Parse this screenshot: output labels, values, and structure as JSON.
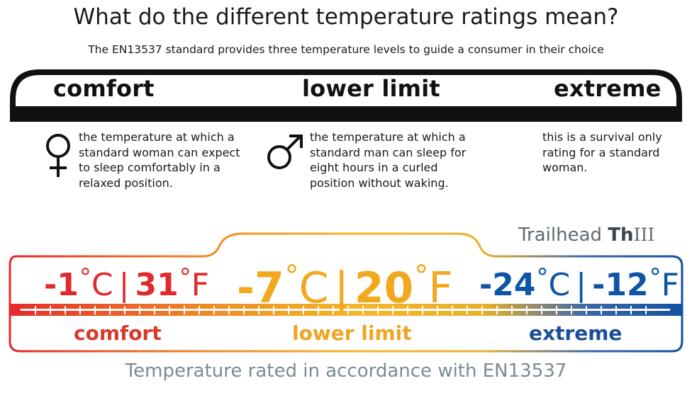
{
  "header": {
    "title": "What do the different temperature ratings mean?",
    "subtitle": "The EN13537 standard provides three temperature levels to guide a consumer in their choice"
  },
  "levels": [
    {
      "label": "comfort",
      "icon": "female-symbol-icon",
      "description": [
        "the temperature at which a",
        "standard woman can expect",
        "to sleep comfortably in a",
        "relaxed position."
      ]
    },
    {
      "label": "lower limit",
      "icon": "male-symbol-icon",
      "description": [
        "the temperature at which a",
        "standard man can sleep for",
        "eight hours in a curled",
        "position without waking."
      ]
    },
    {
      "label": "extreme",
      "description": [
        "this is a survival only",
        "rating for a standard",
        "woman."
      ]
    }
  ],
  "brand": {
    "name": "Trailhead",
    "mark": "Th",
    "model": "III"
  },
  "ratings": {
    "comfort": {
      "celsius": "-1",
      "fahrenheit": "31",
      "label": "comfort",
      "color": "#e02a2d"
    },
    "lower_limit": {
      "celsius": "-7",
      "fahrenheit": "20",
      "label": "lower limit",
      "color": "#f2a81c"
    },
    "extreme": {
      "celsius": "-24",
      "fahrenheit": "-12",
      "label": "extreme",
      "color": "#0e55a5"
    }
  },
  "units": {
    "degree": "°",
    "c": "C",
    "f": "F",
    "separator": "|"
  },
  "footer": "Temperature rated in accordance with EN13537"
}
